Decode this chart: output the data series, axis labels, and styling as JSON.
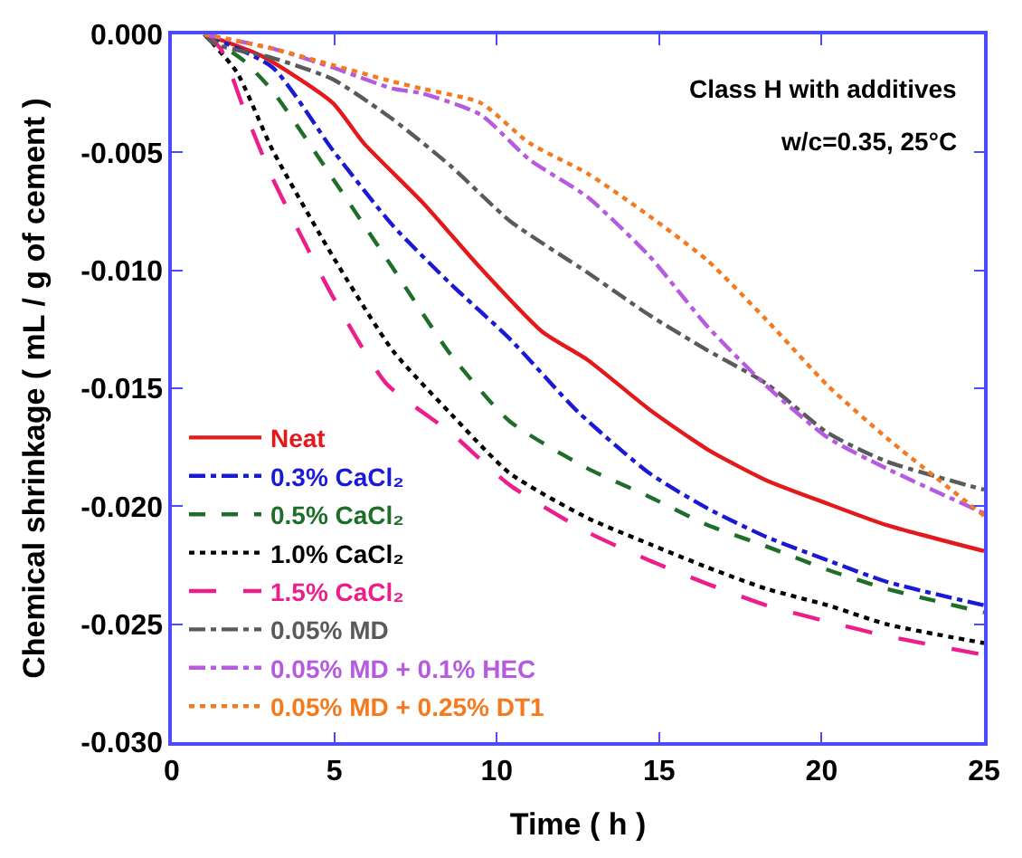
{
  "chart_data": {
    "type": "line",
    "xlabel": "Time ( h )",
    "ylabel": "Chemical shrinkage ( mL / g of cement )",
    "annotations": [
      "Class H with additives",
      "w/c=0.35, 25°C"
    ],
    "xlim": [
      0,
      25
    ],
    "xticks": [
      0,
      5,
      10,
      15,
      20,
      25
    ],
    "ylim": [
      -0.03,
      0
    ],
    "yticks": [
      {
        "value": 0,
        "label": "0.000"
      },
      {
        "value": -0.005,
        "label": "-0.005"
      },
      {
        "value": -0.01,
        "label": "-0.010"
      },
      {
        "value": -0.015,
        "label": "-0.015"
      },
      {
        "value": -0.02,
        "label": "-0.020"
      },
      {
        "value": -0.025,
        "label": "-0.025"
      },
      {
        "value": -0.03,
        "label": "-0.030"
      }
    ],
    "legend": "bottom left",
    "marker": "none",
    "series": [
      {
        "name": "Neat",
        "color": "#e3191c",
        "line_style": "solid",
        "x": [
          1,
          2.75,
          4.95,
          5.9,
          7.7,
          9.5,
          11.4,
          12.8,
          14.7,
          16.5,
          18.3,
          20.2,
          22,
          25
        ],
        "values": [
          0,
          -0.0009,
          -0.0029,
          -0.0046,
          -0.0071,
          -0.0099,
          -0.0126,
          -0.0138,
          -0.0159,
          -0.0176,
          -0.0189,
          -0.0199,
          -0.0208,
          -0.0219
        ]
      },
      {
        "name": "0.3% CaCl₂",
        "color": "#1a1ad6",
        "line_style": "dashdot",
        "x": [
          1,
          3.1,
          4.95,
          6.8,
          8.6,
          10.4,
          12.5,
          14.7,
          16.5,
          18.3,
          20.2,
          22,
          25
        ],
        "values": [
          0,
          -0.0014,
          -0.0049,
          -0.0081,
          -0.0106,
          -0.0129,
          -0.016,
          -0.0186,
          -0.0201,
          -0.0213,
          -0.0223,
          -0.0232,
          -0.0242
        ]
      },
      {
        "name": "0.5% CaCl₂",
        "color": "#1e6e2a",
        "line_style": "dashed",
        "x": [
          1,
          2.2,
          3.1,
          4.95,
          6.8,
          8.6,
          10.4,
          12.8,
          14.7,
          16.5,
          18.3,
          20.2,
          22,
          25
        ],
        "values": [
          0,
          -0.0011,
          -0.0024,
          -0.0061,
          -0.0099,
          -0.0136,
          -0.0164,
          -0.0184,
          -0.0196,
          -0.0208,
          -0.0217,
          -0.0227,
          -0.0235,
          -0.0245
        ]
      },
      {
        "name": "1.0% CaCl₂",
        "color": "#000000",
        "line_style": "dotted",
        "x": [
          1,
          2.0,
          3.1,
          4.95,
          6.8,
          8.6,
          10.4,
          12.8,
          14.7,
          16.5,
          18.3,
          20.2,
          22,
          25
        ],
        "values": [
          0,
          -0.0016,
          -0.0049,
          -0.0094,
          -0.0134,
          -0.0161,
          -0.0186,
          -0.0205,
          -0.0216,
          -0.0226,
          -0.0235,
          -0.0242,
          -0.025,
          -0.0258
        ]
      },
      {
        "name": "1.5% CaCl₂",
        "color": "#ec1e8c",
        "line_style": "longdash",
        "x": [
          1,
          1.5,
          2.2,
          3.1,
          4.95,
          6.6,
          8.6,
          10.4,
          12.8,
          14.7,
          16.5,
          18.3,
          20.2,
          22,
          25
        ],
        "values": [
          0,
          -0.0006,
          -0.0031,
          -0.0061,
          -0.0111,
          -0.0148,
          -0.0169,
          -0.0191,
          -0.0211,
          -0.0223,
          -0.0233,
          -0.0242,
          -0.0249,
          -0.0255,
          -0.0263
        ]
      },
      {
        "name": "0.05% MD",
        "color": "#5a5a5a",
        "line_style": "dashdot",
        "x": [
          1,
          1.3,
          3.1,
          4.95,
          6.8,
          8.6,
          10.4,
          12.8,
          14.7,
          16.5,
          18.3,
          20.2,
          22,
          25
        ],
        "values": [
          0,
          -0.0004,
          -0.001,
          -0.0019,
          -0.0036,
          -0.0056,
          -0.0079,
          -0.0101,
          -0.0119,
          -0.0134,
          -0.0148,
          -0.0169,
          -0.0181,
          -0.0193
        ]
      },
      {
        "name": "0.05% MD + 0.1% HEC",
        "color": "#b65ae0",
        "line_style": "dashdot",
        "x": [
          1,
          3.1,
          4.95,
          6.8,
          7.7,
          9.5,
          11.0,
          12.8,
          14.7,
          16.5,
          18.3,
          20.2,
          22,
          25
        ],
        "values": [
          0,
          -0.0006,
          -0.0014,
          -0.0023,
          -0.0025,
          -0.0034,
          -0.0053,
          -0.0069,
          -0.0094,
          -0.0124,
          -0.0149,
          -0.0171,
          -0.0184,
          -0.0203
        ]
      },
      {
        "name": "0.05% MD + 0.25% DT1",
        "color": "#f57a1e",
        "line_style": "dotted",
        "x": [
          1,
          3.1,
          4.95,
          6.8,
          7.7,
          9.5,
          11.0,
          12.8,
          14.7,
          16.5,
          18.3,
          20.2,
          22,
          25
        ],
        "values": [
          0,
          -0.0006,
          -0.0013,
          -0.002,
          -0.0023,
          -0.0029,
          -0.0046,
          -0.0059,
          -0.0077,
          -0.0096,
          -0.0121,
          -0.0149,
          -0.0171,
          -0.0204
        ]
      }
    ]
  }
}
